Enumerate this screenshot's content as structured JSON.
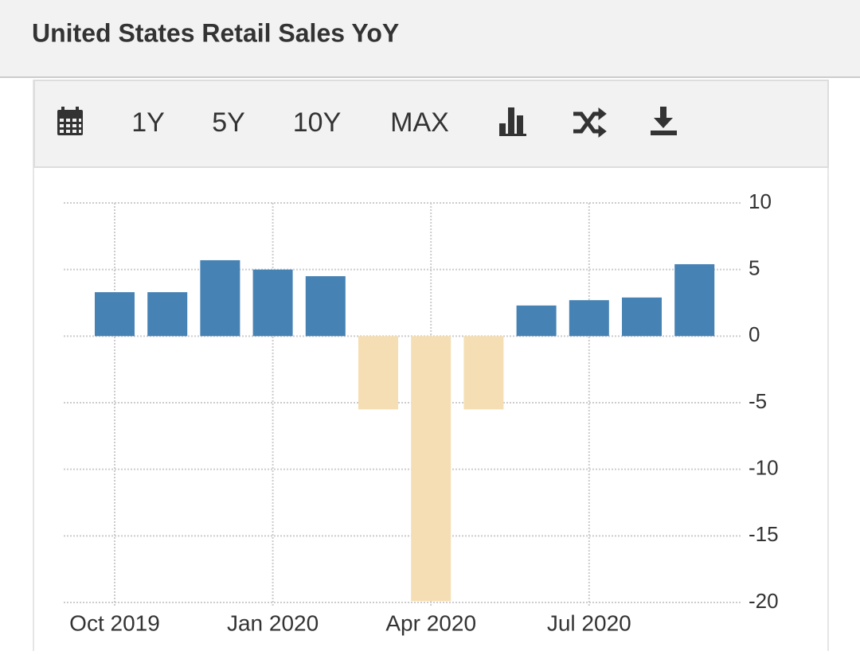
{
  "header": {
    "title": "United States Retail Sales YoY"
  },
  "toolbar": {
    "buttons": [
      "1Y",
      "5Y",
      "10Y",
      "MAX"
    ]
  },
  "chart_data": {
    "type": "bar",
    "categories": [
      "Oct 2019",
      null,
      null,
      "Jan 2020",
      null,
      null,
      "Apr 2020",
      null,
      null,
      "Jul 2020",
      null,
      null
    ],
    "values": [
      3.3,
      3.3,
      5.7,
      5.0,
      4.5,
      -5.5,
      -19.9,
      -5.5,
      2.3,
      2.7,
      2.9,
      5.4
    ],
    "color": "#4682b4",
    "negative_color": "#f5deb3",
    "ylim": [
      -20,
      10
    ],
    "yticks": [
      -20,
      -15,
      -10,
      -5,
      0,
      5,
      10
    ],
    "grid": true
  }
}
